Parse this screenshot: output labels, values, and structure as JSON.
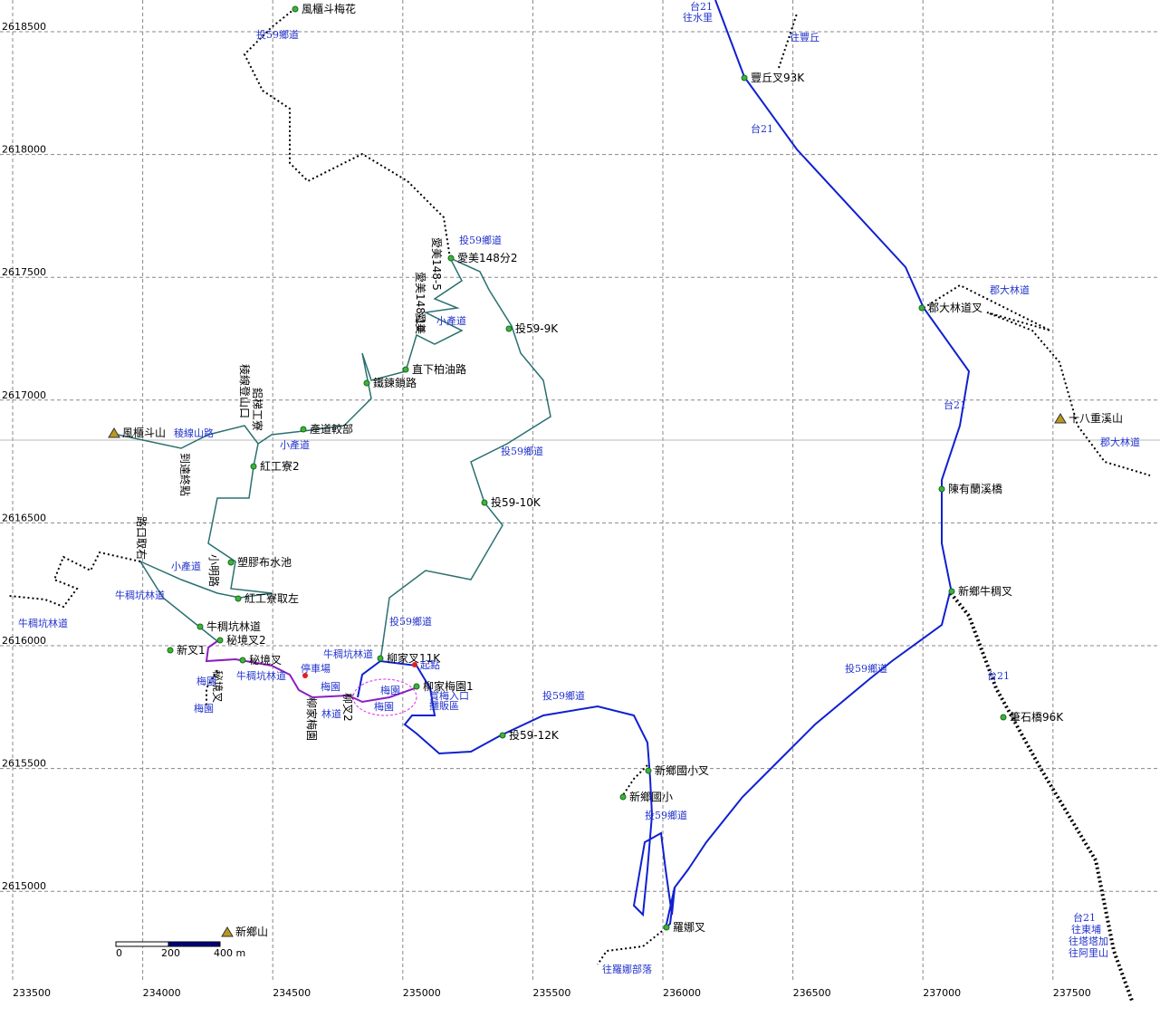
{
  "grid": {
    "x_ticks": [
      233500,
      234000,
      234500,
      235000,
      235500,
      236000,
      236500,
      237000,
      237500
    ],
    "y_ticks": [
      2618500,
      2618000,
      2617500,
      2617000,
      2616500,
      2616000,
      2615500,
      2615000
    ]
  },
  "labels": [
    "風櫃斗梅花",
    "豐丘叉93K",
    "愛美148分2",
    "投59-9K",
    "直下柏油路",
    "鐵鍊鎖路",
    "郡大林道叉",
    "十八重溪山",
    "風櫃斗山",
    "產道較部",
    "紅工寮2",
    "陳有蘭溪橋",
    "投59-10K",
    "塑膠布水池",
    "紅工寮取左",
    "新鄉牛稠叉",
    "牛稠坑林道",
    "秘境叉2",
    "新叉1",
    "秘境叉",
    "柳家叉11K",
    "柳家梅園1",
    "筆石橋96K",
    "投59-12K",
    "新鄉國小叉",
    "新鄉國小",
    "羅娜叉",
    "新鄉山"
  ],
  "vertical_labels": [
    "愛美148-5",
    "愛美148-10",
    "愛美",
    "稜線登山口",
    "鋁梯工寮",
    "到達終點",
    "路口取右",
    "小明路",
    "柳家梅園",
    "柳叉2",
    "秘境叉"
  ],
  "road_labels": [
    "台21",
    "往水里",
    "往豐丘",
    "投59鄉道",
    "台21",
    "投59鄉道",
    "郡大林道",
    "小產道",
    "台21",
    "稜線山路",
    "郡大林道",
    "小產道",
    "投59鄉道",
    "小產道",
    "牛稠坑林道",
    "牛稠坑林道",
    "投59鄉道",
    "牛稠坑林道",
    "起點",
    "停車場",
    "投59鄉道",
    "牛稠坑林道",
    "梅園",
    "梅園",
    "台21",
    "梅園",
    "賞梅入口",
    "攤販區",
    "投59鄉道",
    "梅園",
    "梅園",
    "林道",
    "投59鄉道",
    "台21",
    "往東埔",
    "往塔塔加",
    "往阿里山",
    "往羅娜部落"
  ],
  "scale_bar": [
    "0",
    "200",
    "400 m"
  ]
}
